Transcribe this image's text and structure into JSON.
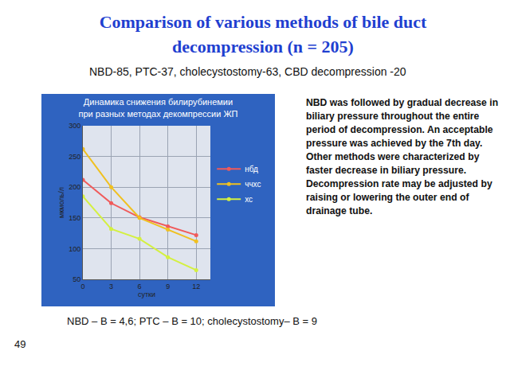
{
  "slide": {
    "title": "Comparison of various methods of bile duct decompression (n = 205)",
    "subtitle": "NBD-85, PTC-37, cholecystostomy-63, CBD decompression -20",
    "note": "NBD was followed by gradual decrease in biliary pressure throughout the entire period of decompression. An acceptable pressure was achieved by the 7th day. Other methods were characterized by faster decrease in biliary pressure. Decompression rate may be adjusted by raising or lowering the outer end of drainage tube.",
    "footer": "NBD – B = 4,6; PTC – B = 10; cholecystostomy– B = 9",
    "page": "49"
  },
  "chart_data": {
    "type": "line",
    "title": "Динамика снижения билирубинемии\nпри разных методах декомпрессии ЖП",
    "x_label": "сутки",
    "y_label": "мкмоль/л",
    "x": [
      0,
      3,
      6,
      9,
      12
    ],
    "series": [
      {
        "name": "нбд",
        "color": "#f05a5a",
        "values": [
          212,
          174,
          151,
          136,
          122
        ]
      },
      {
        "name": "ччхс",
        "color": "#f0c020",
        "values": [
          262,
          200,
          150,
          131,
          112
        ]
      },
      {
        "name": "хс",
        "color": "#d4f040",
        "values": [
          185,
          132,
          116,
          86,
          65
        ]
      }
    ],
    "xlim": [
      0,
      13.5
    ],
    "xticks": [
      0,
      3,
      6,
      9,
      12
    ],
    "ylim": [
      50,
      300
    ],
    "yticks": [
      50,
      100,
      150,
      200,
      250,
      300
    ],
    "grid": true,
    "legend": "right"
  }
}
